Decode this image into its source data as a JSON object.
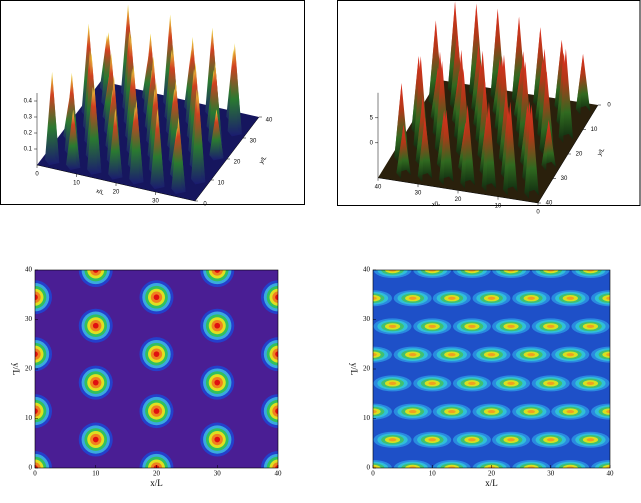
{
  "chart_data": [
    {
      "type": "surface",
      "xlabel": "x/L",
      "ylabel": "y/L",
      "xlim": [
        0,
        40
      ],
      "ylim": [
        0,
        40
      ],
      "zlim": [
        0,
        0.45
      ],
      "xticks": [
        0,
        10,
        20,
        30
      ],
      "yticks": [
        0,
        10,
        20,
        30,
        40
      ],
      "zticks": [
        0.1,
        0.2,
        0.3,
        0.4
      ]
    },
    {
      "type": "surface",
      "xlabel": "x/L",
      "ylabel": "y/L",
      "xlim": [
        0,
        40
      ],
      "ylim": [
        0,
        40
      ],
      "zlim": [
        -7,
        10
      ],
      "xticks": [
        0,
        10,
        20,
        30,
        40
      ],
      "yticks": [
        0,
        10,
        20,
        30,
        40
      ],
      "zticks": [
        0,
        5
      ]
    },
    {
      "type": "contour",
      "xlabel": "x/L",
      "ylabel": "y/L",
      "xlim": [
        0,
        40
      ],
      "ylim": [
        0,
        40
      ],
      "xticks": [
        0,
        10,
        20,
        30,
        40
      ],
      "yticks": [
        0,
        10,
        20,
        30,
        40
      ],
      "peaks_x": [
        0,
        0,
        0,
        0,
        20,
        20,
        20,
        20,
        40,
        40,
        40,
        40,
        10,
        10,
        10,
        10,
        30,
        30,
        30,
        30
      ],
      "peaks_y": [
        0,
        11.5,
        23,
        34.5,
        0,
        11.5,
        23,
        34.5,
        0,
        11.5,
        23,
        34.5,
        5.75,
        17.25,
        28.75,
        40,
        5.75,
        17.25,
        28.75,
        40
      ]
    },
    {
      "type": "contour",
      "xlabel": "x/L",
      "ylabel": "y/L",
      "xlim": [
        0,
        40
      ],
      "ylim": [
        0,
        40
      ],
      "xticks": [
        0,
        10,
        20,
        30,
        40
      ],
      "yticks": [
        0,
        10,
        20,
        30,
        40
      ],
      "peaks_x": [
        0,
        6.7,
        13.3,
        20,
        26.7,
        33.3,
        40,
        3.3,
        10,
        16.7,
        23.3,
        30,
        36.7,
        0,
        6.7,
        13.3,
        20,
        26.7,
        33.3,
        40,
        3.3,
        10,
        16.7,
        23.3,
        30,
        36.7,
        0,
        6.7,
        13.3,
        20,
        26.7,
        33.3,
        40,
        3.3,
        10,
        16.7,
        23.3,
        30,
        36.7,
        0,
        6.7,
        13.3,
        20,
        26.7,
        33.3,
        40,
        3.3,
        10,
        16.7,
        23.3,
        30,
        36.7
      ],
      "peaks_y": [
        0,
        0,
        0,
        0,
        0,
        0,
        0,
        5.7,
        5.7,
        5.7,
        5.7,
        5.7,
        5.7,
        11.4,
        11.4,
        11.4,
        11.4,
        11.4,
        11.4,
        11.4,
        17.1,
        17.1,
        17.1,
        17.1,
        17.1,
        17.1,
        22.9,
        22.9,
        22.9,
        22.9,
        22.9,
        22.9,
        22.9,
        28.6,
        28.6,
        28.6,
        28.6,
        28.6,
        28.6,
        34.3,
        34.3,
        34.3,
        34.3,
        34.3,
        34.3,
        34.3,
        40,
        40,
        40,
        40,
        40,
        40
      ]
    }
  ]
}
